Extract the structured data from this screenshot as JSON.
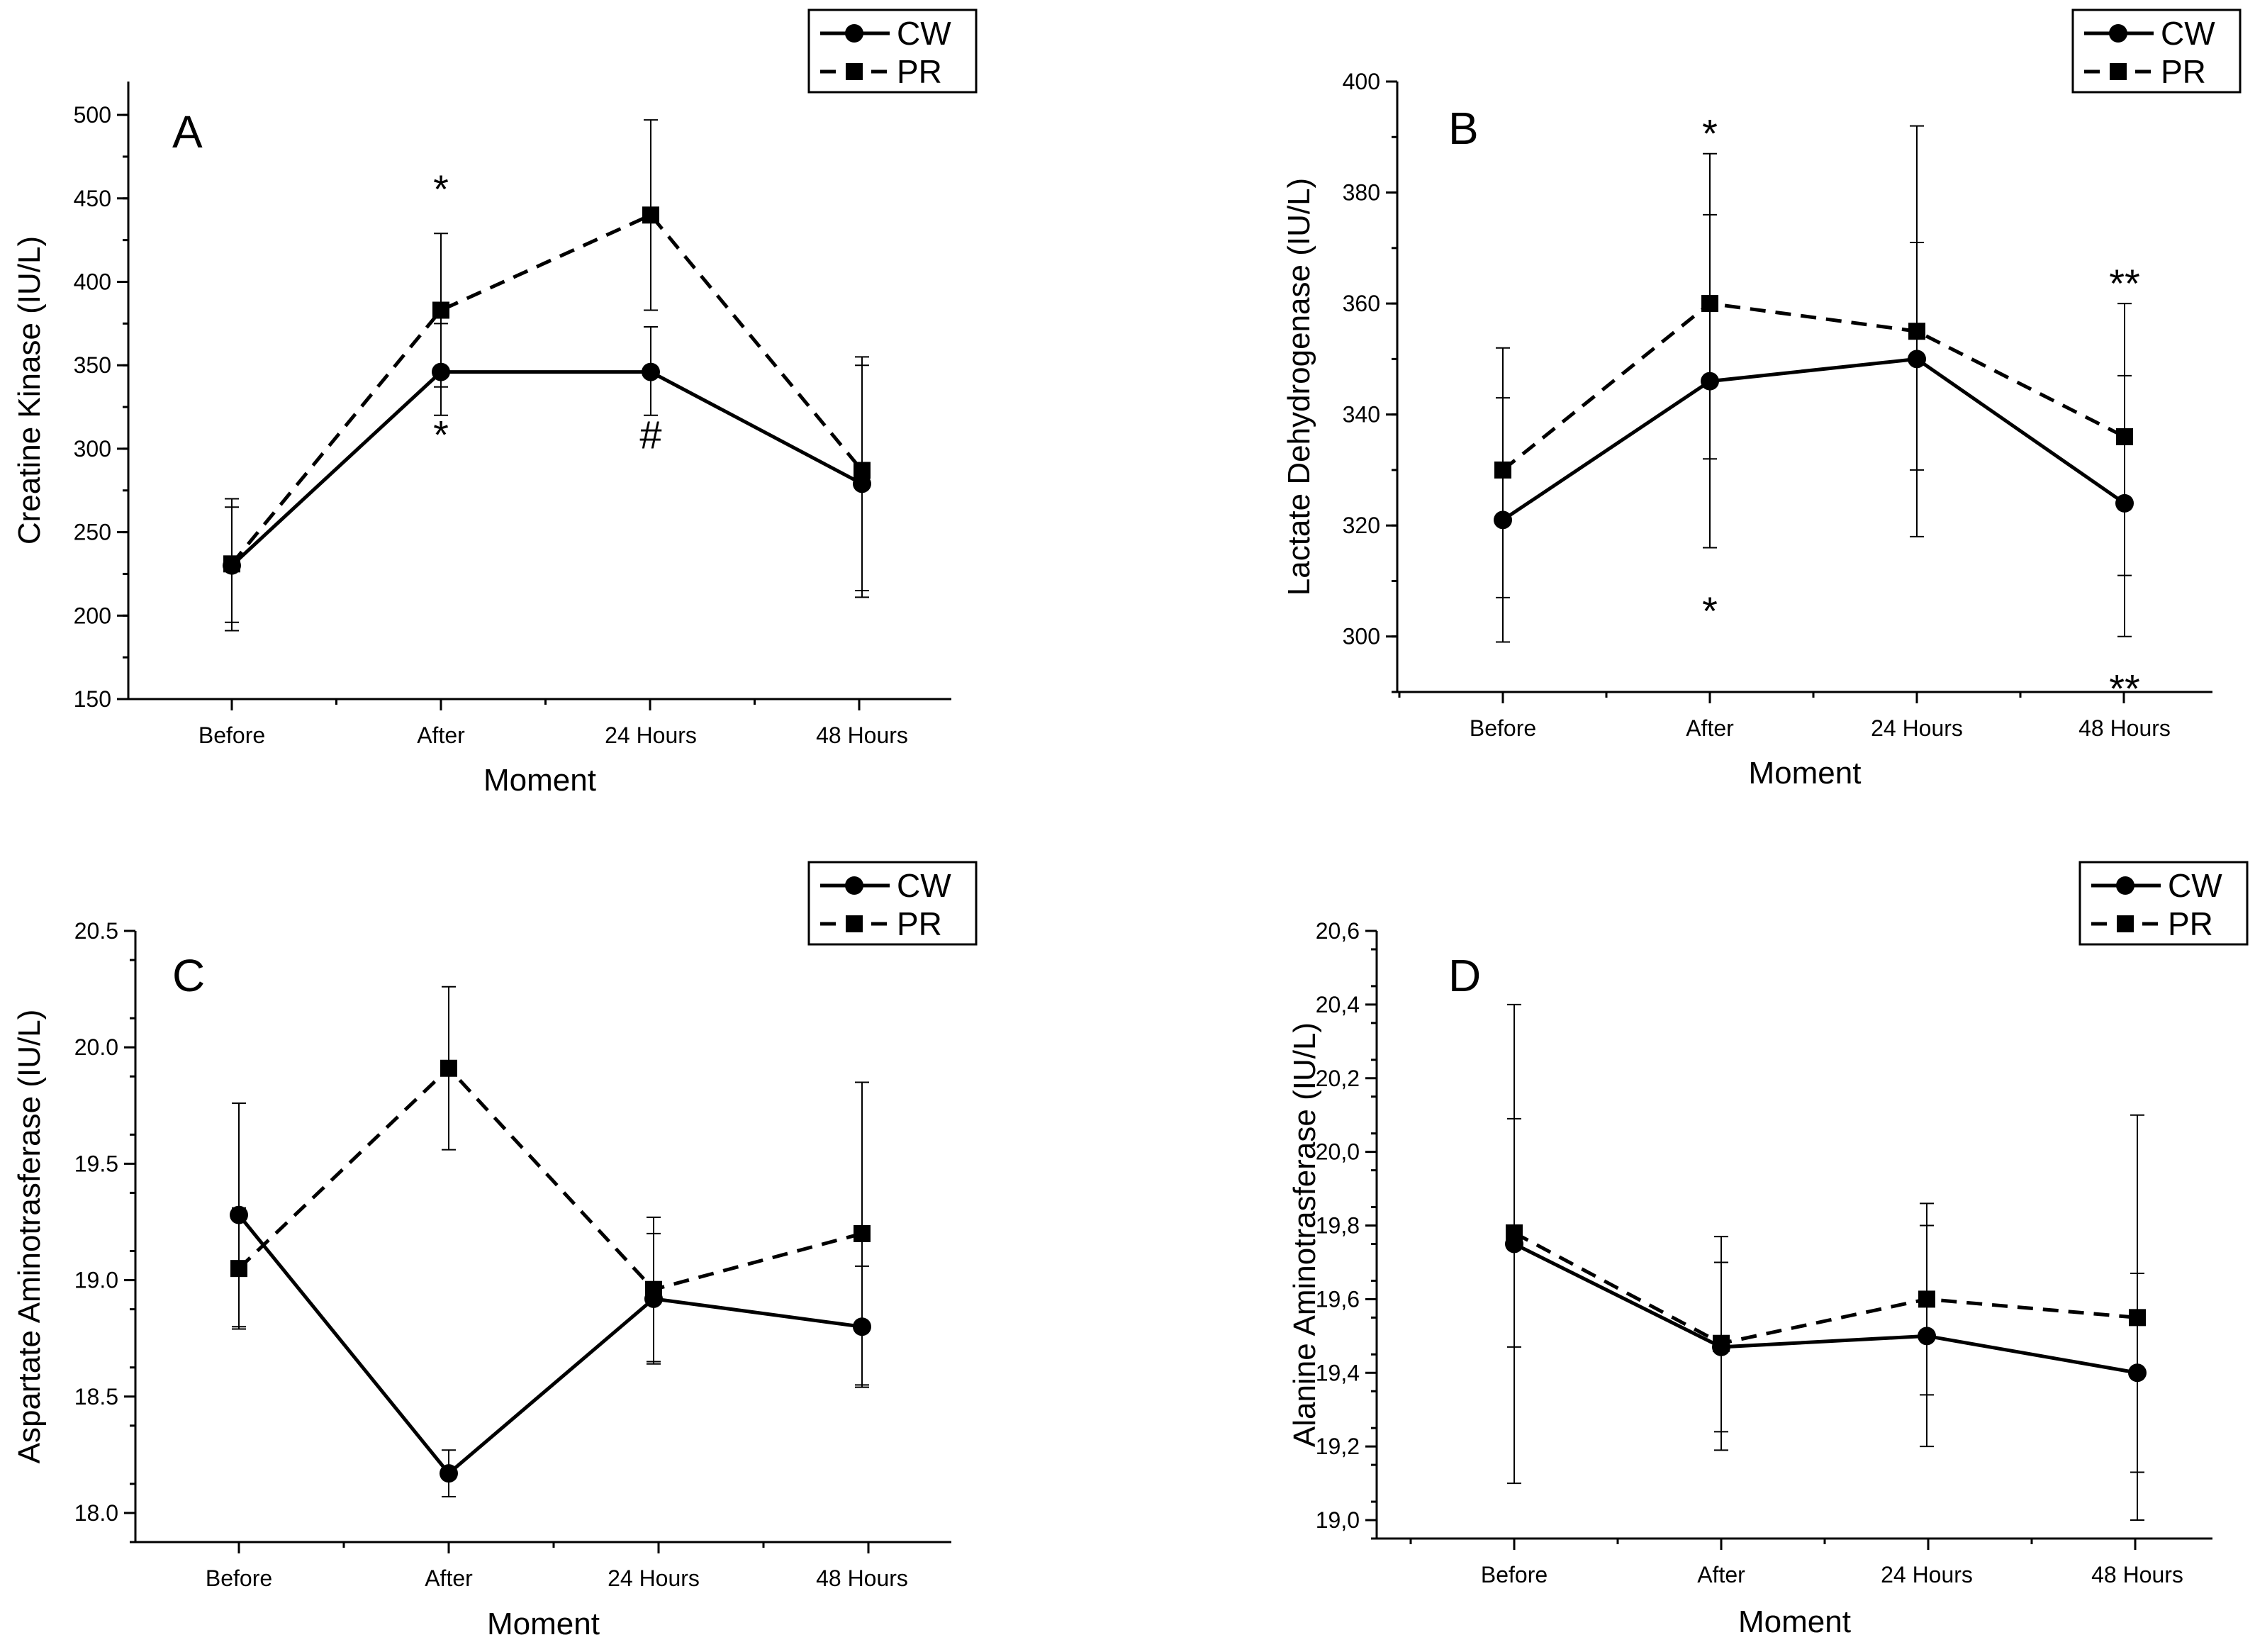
{
  "colors": {
    "ink": "#000000",
    "background": "#ffffff"
  },
  "legend": {
    "entries": [
      {
        "name": "CW",
        "line": "solid",
        "marker": "circle"
      },
      {
        "name": "PR",
        "line": "dashed",
        "marker": "square"
      }
    ]
  },
  "chart_data": [
    {
      "panel": "A",
      "type": "line",
      "xlabel": "Moment",
      "ylabel": "Creatine Kinase (IU/L)",
      "categories": [
        "Before",
        "After",
        "24 Hours",
        "48 Hours"
      ],
      "ylim": [
        150,
        520
      ],
      "yticks": [
        150,
        200,
        250,
        300,
        350,
        400,
        450,
        500
      ],
      "yminor": 25,
      "legend_position": "top-right",
      "series": [
        {
          "name": "CW",
          "values": [
            230,
            346,
            346,
            279
          ],
          "err_low": [
            196,
            320,
            320,
            215
          ],
          "err_high": [
            265,
            375,
            373,
            350
          ]
        },
        {
          "name": "PR",
          "values": [
            231,
            383,
            440,
            287
          ],
          "err_low": [
            191,
            337,
            383,
            211
          ],
          "err_high": [
            270,
            429,
            497,
            355
          ]
        }
      ],
      "annotations": [
        {
          "text": "*",
          "x": "After",
          "y": 460
        },
        {
          "text": "*",
          "x": "After",
          "y": 313
        },
        {
          "text": "#",
          "x": "24 Hours",
          "y": 313
        }
      ]
    },
    {
      "panel": "B",
      "type": "line",
      "xlabel": "Moment",
      "ylabel": "Lactate Dehydrogenase (IU/L)",
      "categories": [
        "Before",
        "After",
        "24 Hours",
        "48 Hours"
      ],
      "ylim": [
        290,
        400
      ],
      "yticks": [
        300,
        320,
        340,
        360,
        380,
        400
      ],
      "yminor": 10,
      "legend_position": "top-right",
      "series": [
        {
          "name": "CW",
          "values": [
            321,
            346,
            350,
            324
          ],
          "err_low": [
            307,
            316,
            330,
            300
          ],
          "err_high": [
            343,
            376,
            371,
            347
          ]
        },
        {
          "name": "PR",
          "values": [
            330,
            360,
            355,
            336
          ],
          "err_low": [
            299,
            332,
            318,
            311
          ],
          "err_high": [
            352,
            387,
            392,
            360
          ]
        }
      ],
      "annotations": [
        {
          "text": "*",
          "x": "After",
          "y": 392
        },
        {
          "text": "*",
          "x": "After",
          "y": 306
        },
        {
          "text": "**",
          "x": "48 Hours",
          "y": 365
        },
        {
          "text": "**",
          "x": "48 Hours",
          "y": 292
        }
      ]
    },
    {
      "panel": "C",
      "type": "line",
      "xlabel": "Moment",
      "ylabel": "Aspartate Aminotrasferase (IU/L)",
      "categories": [
        "Before",
        "After",
        "24 Hours",
        "48 Hours"
      ],
      "ylim": [
        17.875,
        20.5
      ],
      "yticks": [
        18.0,
        18.5,
        19.0,
        19.5,
        20.0,
        20.5
      ],
      "ytick_labels": [
        "18.0",
        "18.5",
        "19.0",
        "19.5",
        "20.0",
        "20.5"
      ],
      "yminor": 0.25,
      "legend_position": "top-right",
      "series": [
        {
          "name": "CW",
          "values": [
            19.28,
            18.17,
            18.92,
            18.8
          ],
          "err_low": [
            18.8,
            18.07,
            18.65,
            18.55
          ],
          "err_high": [
            19.76,
            18.27,
            19.2,
            19.06
          ]
        },
        {
          "name": "PR",
          "values": [
            19.05,
            19.91,
            18.96,
            19.2
          ],
          "err_low": [
            18.79,
            19.56,
            18.64,
            18.54
          ],
          "err_high": [
            19.31,
            20.26,
            19.27,
            19.85
          ]
        }
      ],
      "annotations": []
    },
    {
      "panel": "D",
      "type": "line",
      "xlabel": "Moment",
      "ylabel": "Alanine Aminotrasferase (IU/L)",
      "categories": [
        "Before",
        "After",
        "24 Hours",
        "48 Hours"
      ],
      "ylim": [
        18.95,
        20.6
      ],
      "yticks": [
        19.0,
        19.2,
        19.4,
        19.6,
        19.8,
        20.0,
        20.2,
        20.4,
        20.6
      ],
      "ytick_labels": [
        "19,0",
        "19,2",
        "19,4",
        "19,6",
        "19,8",
        "20,0",
        "20,2",
        "20,4",
        "20,6"
      ],
      "yminor": 0.1,
      "legend_position": "top-right",
      "series": [
        {
          "name": "CW",
          "values": [
            19.75,
            19.47,
            19.5,
            19.4
          ],
          "err_low": [
            19.1,
            19.24,
            19.2,
            19.13
          ],
          "err_high": [
            20.4,
            19.7,
            19.8,
            19.67
          ]
        },
        {
          "name": "PR",
          "values": [
            19.78,
            19.48,
            19.6,
            19.55
          ],
          "err_low": [
            19.47,
            19.19,
            19.34,
            19.0
          ],
          "err_high": [
            20.09,
            19.77,
            19.86,
            20.1
          ]
        }
      ],
      "annotations": []
    }
  ]
}
